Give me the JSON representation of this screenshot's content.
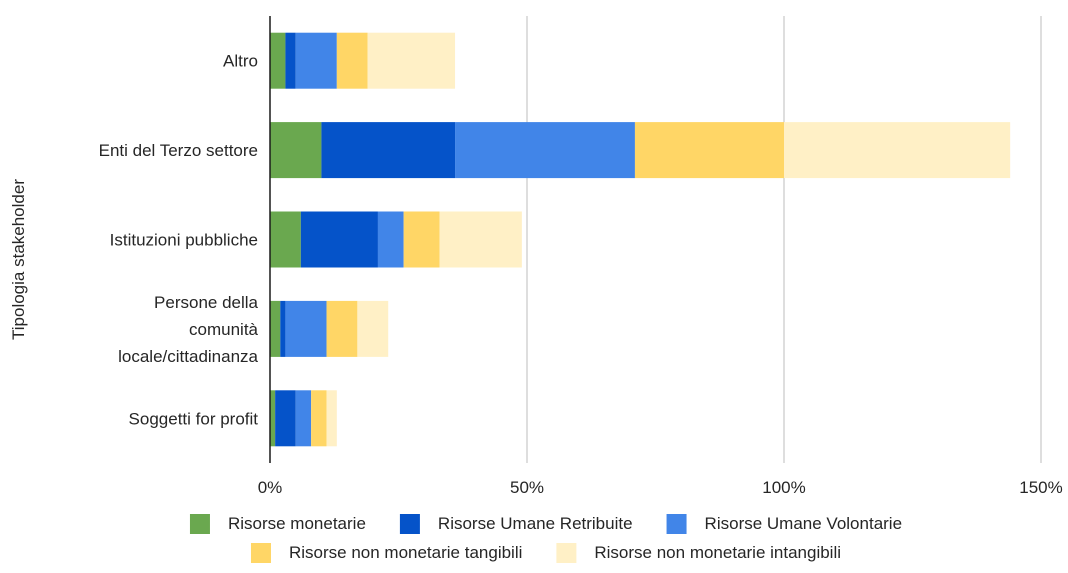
{
  "chart_data": {
    "type": "bar",
    "orientation": "horizontal",
    "stacked": true,
    "title": "",
    "xlabel": "",
    "ylabel": "Tipologia stakeholder",
    "xlim": [
      0,
      150
    ],
    "x_ticks": [
      0,
      50,
      100,
      150
    ],
    "tick_suffix": "%",
    "grid": "vertical",
    "legend_position": "bottom",
    "categories": [
      [
        "Altro"
      ],
      [
        "Enti del Terzo settore"
      ],
      [
        "Istituzioni pubbliche"
      ],
      [
        "Persone della",
        "comunità",
        "locale/cittadinanza"
      ],
      [
        "Soggetti for profit"
      ]
    ],
    "series": [
      {
        "name": "Risorse monetarie",
        "color": "#6aa84f",
        "values": [
          3,
          10,
          6,
          2,
          1
        ]
      },
      {
        "name": "Risorse Umane Retribuite",
        "color": "#0553c9",
        "values": [
          2,
          26,
          15,
          1,
          4
        ]
      },
      {
        "name": "Risorse Umane Volontarie",
        "color": "#4185e8",
        "values": [
          8,
          35,
          5,
          8,
          3
        ]
      },
      {
        "name": "Risorse non monetarie tangibili",
        "color": "#ffd666",
        "values": [
          6,
          29,
          7,
          6,
          3
        ]
      },
      {
        "name": "Risorse non monetarie intangibili",
        "color": "#fff0c6",
        "values": [
          17,
          44,
          16,
          6,
          2
        ]
      }
    ]
  }
}
